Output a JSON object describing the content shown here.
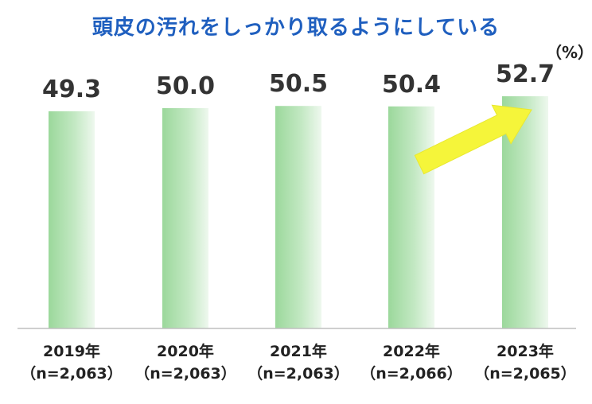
{
  "chart_data": {
    "type": "bar",
    "title": "頭皮の汚れをしっかり取るようにしている",
    "unit": "（%）",
    "categories": [
      "2019年",
      "2020年",
      "2021年",
      "2022年",
      "2023年"
    ],
    "category_sublabels": [
      "（n=2,063）",
      "（n=2,063）",
      "（n=2,063）",
      "（n=2,066）",
      "（n=2,065）"
    ],
    "values": [
      49.3,
      50.0,
      50.5,
      50.4,
      52.7
    ],
    "value_labels": [
      "49.3",
      "50.0",
      "50.5",
      "50.4",
      "52.7"
    ],
    "ylim": [
      0,
      55
    ],
    "bar_color": "#a9dfa9",
    "arrow_color": "#f5f53a",
    "xlabel": "",
    "ylabel": ""
  }
}
